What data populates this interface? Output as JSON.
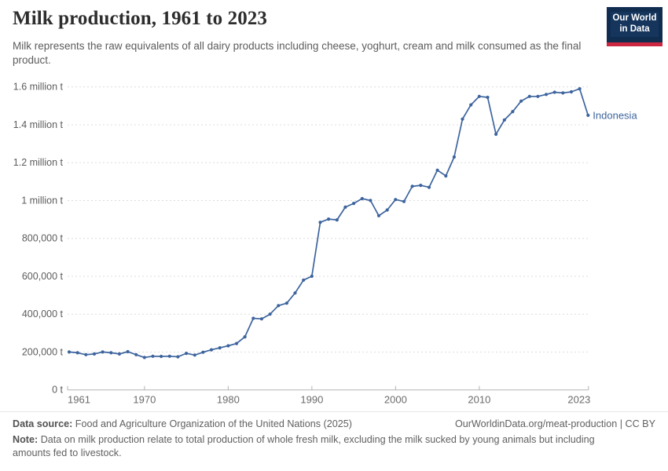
{
  "header": {
    "title": "Milk production, 1961 to 2023",
    "subtitle": "Milk represents the raw equivalents of all dairy products including cheese, yoghurt, cream and milk consumed as the final product."
  },
  "logo": {
    "line1": "Our World",
    "line2": "in Data"
  },
  "chart_data": {
    "type": "line",
    "title": "Milk production, 1961 to 2023",
    "xlabel": "",
    "ylabel": "",
    "grid": "horizontal-dashed",
    "legend": "end-of-line-label",
    "entity_label": "Indonesia",
    "ylim": [
      0,
      1600000
    ],
    "yticks": [
      {
        "value": 0,
        "label": "0 t"
      },
      {
        "value": 200000,
        "label": "200,000 t"
      },
      {
        "value": 400000,
        "label": "400,000 t"
      },
      {
        "value": 600000,
        "label": "600,000 t"
      },
      {
        "value": 800000,
        "label": "800,000 t"
      },
      {
        "value": 1000000,
        "label": "1 million t"
      },
      {
        "value": 1200000,
        "label": "1.2 million t"
      },
      {
        "value": 1400000,
        "label": "1.4 million t"
      },
      {
        "value": 1600000,
        "label": "1.6 million t"
      }
    ],
    "xticks": [
      1961,
      1970,
      1980,
      1990,
      2000,
      2010,
      2023
    ],
    "x": [
      1961,
      1962,
      1963,
      1964,
      1965,
      1966,
      1967,
      1968,
      1969,
      1970,
      1971,
      1972,
      1973,
      1974,
      1975,
      1976,
      1977,
      1978,
      1979,
      1980,
      1981,
      1982,
      1983,
      1984,
      1985,
      1986,
      1987,
      1988,
      1989,
      1990,
      1991,
      1992,
      1993,
      1994,
      1995,
      1996,
      1997,
      1998,
      1999,
      2000,
      2001,
      2002,
      2003,
      2004,
      2005,
      2006,
      2007,
      2008,
      2009,
      2010,
      2011,
      2012,
      2013,
      2014,
      2015,
      2016,
      2017,
      2018,
      2019,
      2020,
      2021,
      2022,
      2023
    ],
    "series": [
      {
        "name": "Indonesia",
        "unit": "t",
        "values": [
          200000,
          196000,
          186000,
          190000,
          200000,
          196000,
          190000,
          202000,
          186000,
          171000,
          178000,
          177000,
          178000,
          175000,
          193000,
          184000,
          199000,
          212000,
          222000,
          233000,
          245000,
          280000,
          378000,
          375000,
          400000,
          445000,
          458000,
          512000,
          580000,
          600000,
          885000,
          902000,
          898000,
          965000,
          985000,
          1010000,
          1000000,
          920000,
          950000,
          1005000,
          995000,
          1075000,
          1080000,
          1070000,
          1160000,
          1130000,
          1230000,
          1430000,
          1505000,
          1550000,
          1545000,
          1350000,
          1425000,
          1470000,
          1525000,
          1550000,
          1550000,
          1560000,
          1572000,
          1568000,
          1574000,
          1590000,
          1450000
        ]
      }
    ]
  },
  "footer": {
    "datasource_label": "Data source:",
    "datasource": "Food and Agriculture Organization of the United Nations (2025)",
    "link": "OurWorldinData.org/meat-production | CC BY",
    "note_label": "Note:",
    "note": "Data on milk production relate to total production of whole fresh milk, excluding the milk sucked by young animals but including amounts fed to livestock."
  },
  "colors": {
    "line": "#3d649e",
    "grid": "#dcdcdc",
    "axis": "#b3b3b3",
    "ytick_text": "#5c5c5c",
    "xtick_text": "#6b6b6b",
    "logo_bg": "#102d50",
    "logo_red": "#cb2740"
  }
}
